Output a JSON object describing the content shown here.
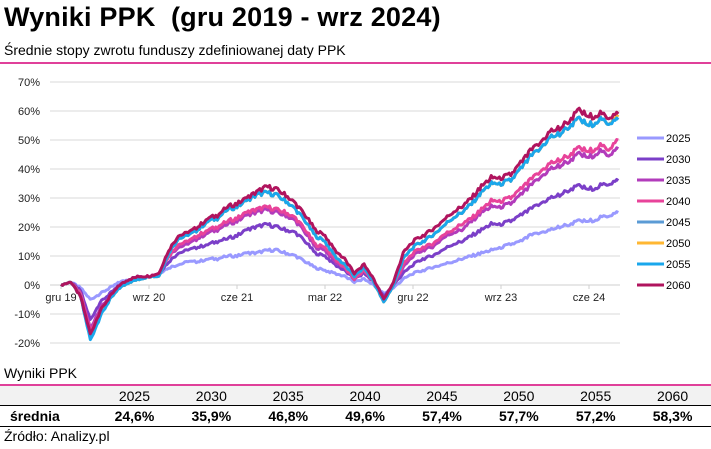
{
  "header": {
    "title": "Wyniki PPK  (gru 2019 - wrz 2024)",
    "subtitle": "Średnie stopy zwrotu funduszy zdefiniowanej daty PPK"
  },
  "chart_data": {
    "type": "line",
    "title": "Średnie stopy zwrotu funduszy zdefiniowanej daty PPK",
    "xlabel": "",
    "ylabel": "",
    "ylim": [
      -20,
      70
    ],
    "y_ticks": [
      -20,
      -10,
      0,
      10,
      20,
      30,
      40,
      50,
      60,
      70
    ],
    "y_tick_labels": [
      "-20%",
      "-10%",
      "0%",
      "10%",
      "20%",
      "30%",
      "40%",
      "50%",
      "60%",
      "70%"
    ],
    "x_ticks": [
      0,
      9,
      18,
      27,
      36,
      45,
      54
    ],
    "x_tick_labels": [
      "gru 19",
      "wrz 20",
      "cze 21",
      "mar 22",
      "gru 22",
      "wrz 23",
      "cze 24"
    ],
    "x_unit": "months since Dec 2019",
    "x_range": [
      0,
      57
    ],
    "grid": true,
    "legend_position": "right",
    "x": [
      0,
      1,
      2,
      3,
      4,
      5,
      6,
      7,
      8,
      9,
      10,
      11,
      12,
      13,
      14,
      15,
      16,
      17,
      18,
      19,
      20,
      21,
      22,
      23,
      24,
      25,
      26,
      27,
      28,
      29,
      30,
      31,
      32,
      33,
      34,
      35,
      36,
      37,
      38,
      39,
      40,
      41,
      42,
      43,
      44,
      45,
      46,
      47,
      48,
      49,
      50,
      51,
      52,
      53,
      54,
      55,
      56,
      57
    ],
    "series": [
      {
        "name": "2025",
        "color": "#9999ff",
        "values": [
          0,
          1,
          -1,
          -5,
          -3,
          -1,
          1,
          2,
          3,
          3,
          4,
          6,
          7,
          8,
          8,
          9,
          9,
          10,
          10,
          11,
          11,
          12,
          12,
          11,
          10,
          8,
          6,
          5,
          4,
          3,
          1,
          2,
          0,
          -3,
          -1,
          2,
          4,
          5,
          6,
          7,
          8,
          9,
          10,
          11,
          12,
          13,
          14,
          15,
          17,
          18,
          19,
          20,
          21,
          22,
          22,
          23,
          24,
          25
        ]
      },
      {
        "name": "2030",
        "color": "#7b3fc8",
        "values": [
          0,
          1,
          -2,
          -12,
          -6,
          -3,
          0,
          2,
          3,
          3,
          4,
          8,
          11,
          12,
          13,
          14,
          15,
          16,
          17,
          19,
          20,
          21,
          20,
          19,
          18,
          15,
          11,
          10,
          7,
          5,
          2,
          4,
          1,
          -4,
          0,
          4,
          7,
          9,
          10,
          12,
          14,
          15,
          17,
          19,
          21,
          21,
          22,
          24,
          26,
          28,
          30,
          31,
          33,
          34,
          33,
          34,
          35,
          36
        ]
      },
      {
        "name": "2035",
        "color": "#b23bbb",
        "values": [
          0,
          1,
          -3,
          -15,
          -8,
          -4,
          -1,
          1,
          3,
          3,
          4,
          10,
          13,
          14,
          16,
          18,
          19,
          21,
          22,
          24,
          25,
          26,
          25,
          24,
          22,
          18,
          13,
          12,
          8,
          6,
          2,
          5,
          1,
          -5,
          0,
          6,
          10,
          12,
          13,
          16,
          18,
          19,
          22,
          25,
          27,
          27,
          28,
          31,
          34,
          37,
          40,
          41,
          43,
          45,
          44,
          46,
          45,
          47
        ]
      },
      {
        "name": "2040",
        "color": "#e8439a",
        "values": [
          0,
          1,
          -3,
          -16,
          -9,
          -4,
          -1,
          1,
          3,
          3,
          4,
          10,
          14,
          15,
          17,
          19,
          20,
          22,
          23,
          25,
          26,
          27,
          26,
          25,
          23,
          19,
          14,
          13,
          9,
          6,
          2,
          5,
          1,
          -5,
          0,
          7,
          11,
          13,
          14,
          17,
          19,
          21,
          23,
          26,
          29,
          29,
          30,
          33,
          36,
          39,
          42,
          43,
          45,
          47,
          46,
          48,
          47,
          50
        ]
      },
      {
        "name": "2045",
        "color": "#5b9bd5",
        "values": [
          0,
          1,
          -4,
          -18,
          -10,
          -5,
          -1,
          1,
          2,
          3,
          3,
          11,
          16,
          17,
          19,
          22,
          23,
          26,
          27,
          29,
          31,
          32,
          31,
          29,
          26,
          22,
          17,
          15,
          10,
          7,
          3,
          6,
          1,
          -6,
          0,
          9,
          13,
          15,
          17,
          20,
          23,
          25,
          28,
          32,
          35,
          35,
          36,
          40,
          44,
          47,
          51,
          52,
          55,
          57,
          55,
          57,
          56,
          58
        ]
      },
      {
        "name": "2050",
        "color": "#ffb732",
        "values": [
          0,
          1,
          -4,
          -18,
          -10,
          -5,
          -1,
          1,
          2,
          3,
          3,
          11,
          16,
          17,
          19,
          22,
          23,
          26,
          27,
          29,
          31,
          32,
          31,
          29,
          26,
          22,
          17,
          15,
          10,
          7,
          3,
          6,
          1,
          -6,
          0,
          9,
          13,
          15,
          17,
          20,
          23,
          25,
          28,
          32,
          35,
          35,
          36,
          40,
          44,
          47,
          51,
          52,
          55,
          57,
          55,
          57,
          56,
          58
        ]
      },
      {
        "name": "2055",
        "color": "#1aa7ec",
        "values": [
          0,
          1,
          -4,
          -19,
          -11,
          -5,
          -1,
          1,
          2,
          3,
          3,
          11,
          16,
          17,
          19,
          22,
          23,
          26,
          27,
          29,
          31,
          32,
          31,
          29,
          26,
          22,
          17,
          15,
          10,
          7,
          3,
          6,
          1,
          -6,
          0,
          9,
          13,
          15,
          17,
          20,
          23,
          25,
          28,
          32,
          35,
          35,
          36,
          40,
          44,
          47,
          51,
          52,
          55,
          57,
          55,
          57,
          56,
          57
        ]
      },
      {
        "name": "2060",
        "color": "#b0145e",
        "values": [
          0,
          1,
          -4,
          -17,
          -9,
          -4,
          0,
          2,
          3,
          3,
          4,
          12,
          17,
          18,
          20,
          23,
          24,
          27,
          28,
          30,
          32,
          34,
          33,
          31,
          28,
          24,
          19,
          17,
          12,
          9,
          4,
          7,
          2,
          -5,
          1,
          11,
          15,
          17,
          19,
          22,
          25,
          27,
          30,
          34,
          37,
          37,
          38,
          42,
          46,
          49,
          53,
          54,
          57,
          60,
          58,
          59,
          58,
          59
        ]
      }
    ]
  },
  "table": {
    "title": "Wyniki PPK",
    "columns": [
      "",
      "2025",
      "2030",
      "2035",
      "2040",
      "2045",
      "2050",
      "2055",
      "2060"
    ],
    "rows": [
      {
        "label": "średnia",
        "values": [
          "24,6%",
          "35,9%",
          "46,8%",
          "49,6%",
          "57,4%",
          "57,7%",
          "57,2%",
          "58,3%"
        ]
      }
    ]
  },
  "footer": {
    "source": "Źródło: Analizy.pl"
  }
}
